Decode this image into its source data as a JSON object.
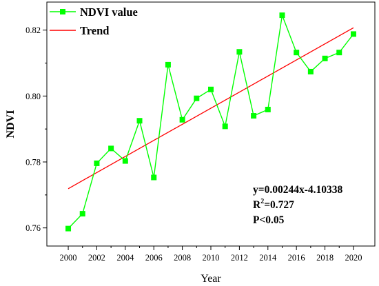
{
  "chart_data": {
    "type": "line",
    "title": "",
    "xlabel": "Year",
    "ylabel": "NDVI",
    "x_tick_labels": [
      "2000",
      "2002",
      "2004",
      "2006",
      "2008",
      "2010",
      "2012",
      "2014",
      "2016",
      "2018",
      "2020"
    ],
    "y_tick_labels": [
      "0.76",
      "0.78",
      "0.80",
      "0.82"
    ],
    "xlim": [
      1998.5,
      2021.5
    ],
    "ylim": [
      0.7545,
      0.8285
    ],
    "x_ticks": [
      2000,
      2002,
      2004,
      2006,
      2008,
      2010,
      2012,
      2014,
      2016,
      2018,
      2020
    ],
    "x_minor_ticks": [
      2001,
      2003,
      2005,
      2007,
      2009,
      2011,
      2013,
      2015,
      2017,
      2019
    ],
    "y_ticks": [
      0.76,
      0.78,
      0.8,
      0.82
    ],
    "y_minor_ticks": [
      0.77,
      0.79,
      0.81
    ],
    "grid": false,
    "legend_position": "top-left",
    "series": [
      {
        "name": "NDVI value",
        "kind": "line-with-square-markers",
        "color": "#00ff00",
        "x": [
          2000,
          2001,
          2002,
          2003,
          2004,
          2005,
          2006,
          2007,
          2008,
          2009,
          2010,
          2011,
          2012,
          2013,
          2014,
          2015,
          2016,
          2017,
          2018,
          2019,
          2020
        ],
        "y": [
          0.7598,
          0.7643,
          0.7796,
          0.7841,
          0.7803,
          0.7925,
          0.7753,
          0.8095,
          0.7928,
          0.7993,
          0.802,
          0.7908,
          0.8134,
          0.794,
          0.7959,
          0.8245,
          0.8132,
          0.8074,
          0.8114,
          0.8132,
          0.8188
        ]
      },
      {
        "name": "Trend",
        "kind": "line",
        "color": "#ff0000",
        "x": [
          2000,
          2020
        ],
        "y": [
          0.7719,
          0.8207
        ]
      }
    ],
    "annotations": {
      "equation": "y=0.00244x-4.10338",
      "r2_prefix": "R",
      "r2_sup": "2",
      "r2_value": "=0.727",
      "p_value": "P<0.05"
    }
  }
}
